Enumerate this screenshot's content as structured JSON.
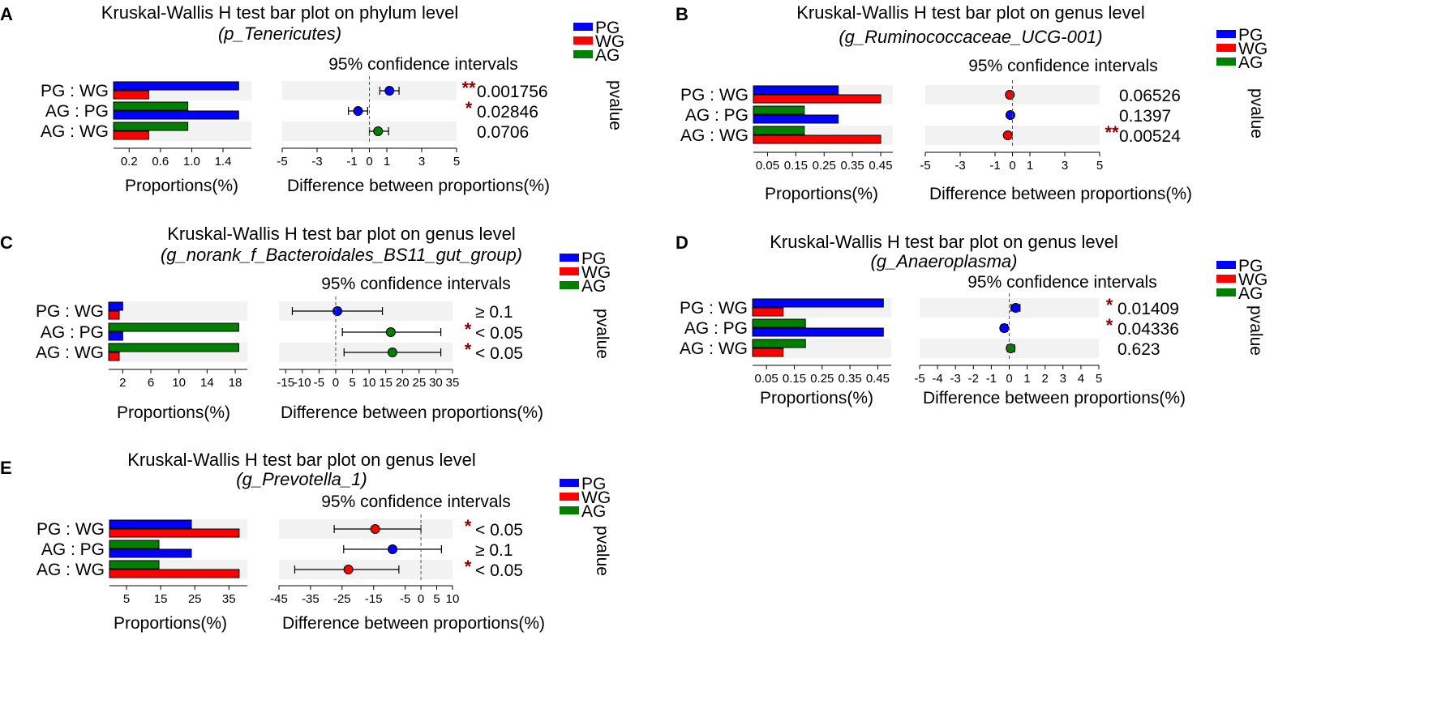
{
  "colors": {
    "PG": "#0000ff",
    "WG": "#ff0000",
    "AG": "#008000",
    "star": "#8b0000",
    "band": "#f2f2f2"
  },
  "legend": [
    "PG",
    "WG",
    "AG"
  ],
  "chart_data": [
    {
      "type": "bar",
      "panel": "A",
      "title": "Kruskal-Wallis H test bar plot on phylum level",
      "subtitle": "(p_Tenericutes)",
      "ci_title": "95% confidence intervals",
      "xlabel_left": "Proportions(%)",
      "xlabel_right": "Difference between proportions(%)",
      "pvalue_label": "pvalue",
      "rows": [
        {
          "label": "PG : WG",
          "bars": [
            {
              "group": "PG",
              "value": 1.6
            },
            {
              "group": "WG",
              "value": 0.45
            }
          ],
          "diff": 1.15,
          "lo": 0.6,
          "hi": 1.7,
          "dot": "PG",
          "pvalue": "0.001756",
          "stars": "**"
        },
        {
          "label": "AG : PG",
          "bars": [
            {
              "group": "AG",
              "value": 0.95
            },
            {
              "group": "PG",
              "value": 1.6
            }
          ],
          "diff": -0.65,
          "lo": -1.2,
          "hi": -0.1,
          "dot": "PG",
          "pvalue": "0.02846",
          "stars": "*"
        },
        {
          "label": "AG : WG",
          "bars": [
            {
              "group": "AG",
              "value": 0.95
            },
            {
              "group": "WG",
              "value": 0.45
            }
          ],
          "diff": 0.5,
          "lo": 0.0,
          "hi": 1.1,
          "dot": "AG",
          "pvalue": "0.0706",
          "stars": ""
        }
      ],
      "prop_max": 1.68,
      "prop_ticks": [
        "0.2",
        "0.6",
        "1.0",
        "1.4"
      ],
      "diff_range": [
        -5,
        5
      ],
      "diff_ticks": [
        "-5",
        "-3",
        "-1",
        "0",
        "1",
        "3",
        "5"
      ]
    },
    {
      "type": "bar",
      "panel": "B",
      "title": "Kruskal-Wallis H test bar plot on genus level",
      "subtitle": "(g_Ruminococcaceae_UCG-001)",
      "ci_title": "95% confidence intervals",
      "xlabel_left": "Proportions(%)",
      "xlabel_right": "Difference between proportions(%)",
      "pvalue_label": "pvalue",
      "rows": [
        {
          "label": "PG : WG",
          "bars": [
            {
              "group": "PG",
              "value": 0.3
            },
            {
              "group": "WG",
              "value": 0.45
            }
          ],
          "diff": -0.15,
          "lo": -0.3,
          "hi": 0.0,
          "dot": "WG",
          "pvalue": "0.06526",
          "stars": ""
        },
        {
          "label": "AG : PG",
          "bars": [
            {
              "group": "AG",
              "value": 0.18
            },
            {
              "group": "PG",
              "value": 0.3
            }
          ],
          "diff": -0.12,
          "lo": -0.25,
          "hi": 0.0,
          "dot": "PG",
          "pvalue": "0.1397",
          "stars": ""
        },
        {
          "label": "AG : WG",
          "bars": [
            {
              "group": "AG",
              "value": 0.18
            },
            {
              "group": "WG",
              "value": 0.45
            }
          ],
          "diff": -0.27,
          "lo": -0.4,
          "hi": -0.1,
          "dot": "WG",
          "pvalue": "0.00524",
          "stars": "**"
        }
      ],
      "prop_max": 0.47,
      "prop_ticks": [
        "0.05",
        "0.15",
        "0.25",
        "0.35",
        "0.45"
      ],
      "diff_range": [
        -5,
        5
      ],
      "diff_ticks": [
        "-5",
        "-3",
        "-1",
        "0",
        "1",
        "3",
        "5"
      ]
    },
    {
      "type": "bar",
      "panel": "C",
      "title": "Kruskal-Wallis H test bar plot on genus level",
      "subtitle": "(g_norank_f_Bacteroidales_BS11_gut_group)",
      "ci_title": "95% confidence intervals",
      "xlabel_left": "Proportions(%)",
      "xlabel_right": "Difference between proportions(%)",
      "pvalue_label": "pvalue",
      "rows": [
        {
          "label": "PG : WG",
          "bars": [
            {
              "group": "PG",
              "value": 2.0
            },
            {
              "group": "WG",
              "value": 1.5
            }
          ],
          "diff": 0.5,
          "lo": -13.0,
          "hi": 14.0,
          "dot": "PG",
          "pvalue": "≥ 0.1",
          "stars": ""
        },
        {
          "label": "AG : PG",
          "bars": [
            {
              "group": "AG",
              "value": 18.5
            },
            {
              "group": "PG",
              "value": 2.0
            }
          ],
          "diff": 16.5,
          "lo": 2.0,
          "hi": 31.5,
          "dot": "AG",
          "pvalue": "< 0.05",
          "stars": "*"
        },
        {
          "label": "AG : WG",
          "bars": [
            {
              "group": "AG",
              "value": 18.5
            },
            {
              "group": "WG",
              "value": 1.5
            }
          ],
          "diff": 17.0,
          "lo": 2.5,
          "hi": 31.5,
          "dot": "AG",
          "pvalue": "< 0.05",
          "stars": "*"
        }
      ],
      "prop_max": 18.8,
      "prop_ticks": [
        "2",
        "6",
        "10",
        "14",
        "18"
      ],
      "diff_range": [
        -17,
        35
      ],
      "diff_ticks": [
        "-15",
        "-10",
        "-5",
        "0",
        "5",
        "10",
        "15",
        "20",
        "25",
        "30",
        "35"
      ]
    },
    {
      "type": "bar",
      "panel": "D",
      "title": "Kruskal-Wallis H test bar plot on genus level",
      "subtitle": "(g_Anaeroplasma)",
      "ci_title": "95% confidence intervals",
      "xlabel_left": "Proportions(%)",
      "xlabel_right": "Difference between proportions(%)",
      "pvalue_label": "pvalue",
      "rows": [
        {
          "label": "PG : WG",
          "bars": [
            {
              "group": "PG",
              "value": 0.47
            },
            {
              "group": "WG",
              "value": 0.11
            }
          ],
          "diff": 0.36,
          "lo": 0.1,
          "hi": 0.6,
          "dot": "PG",
          "pvalue": "0.01409",
          "stars": "*"
        },
        {
          "label": "AG : PG",
          "bars": [
            {
              "group": "AG",
              "value": 0.19
            },
            {
              "group": "PG",
              "value": 0.47
            }
          ],
          "diff": -0.28,
          "lo": -0.45,
          "hi": -0.1,
          "dot": "PG",
          "pvalue": "0.04336",
          "stars": "*"
        },
        {
          "label": "AG : WG",
          "bars": [
            {
              "group": "AG",
              "value": 0.19
            },
            {
              "group": "WG",
              "value": 0.11
            }
          ],
          "diff": 0.08,
          "lo": -0.1,
          "hi": 0.3,
          "dot": "AG",
          "pvalue": "0.623",
          "stars": ""
        }
      ],
      "prop_max": 0.475,
      "prop_ticks": [
        "0.05",
        "0.15",
        "0.25",
        "0.35",
        "0.45"
      ],
      "diff_range": [
        -5,
        5
      ],
      "diff_ticks": [
        "-5",
        "-4",
        "-3",
        "-2",
        "-1",
        "0",
        "1",
        "2",
        "3",
        "4",
        "5"
      ]
    },
    {
      "type": "bar",
      "panel": "E",
      "title": "Kruskal-Wallis H test bar plot on genus level",
      "subtitle": "(g_Prevotella_1)",
      "ci_title": "95% confidence intervals",
      "xlabel_left": "Proportions(%)",
      "xlabel_right": "Difference between proportions(%)",
      "pvalue_label": "pvalue",
      "rows": [
        {
          "label": "PG : WG",
          "bars": [
            {
              "group": "PG",
              "value": 24.0
            },
            {
              "group": "WG",
              "value": 38.0
            }
          ],
          "diff": -14.5,
          "lo": -27.5,
          "hi": 0.0,
          "dot": "WG",
          "pvalue": "< 0.05",
          "stars": "*"
        },
        {
          "label": "AG : PG",
          "bars": [
            {
              "group": "AG",
              "value": 14.5
            },
            {
              "group": "PG",
              "value": 24.0
            }
          ],
          "diff": -9.0,
          "lo": -24.5,
          "hi": 6.5,
          "dot": "PG",
          "pvalue": "≥ 0.1",
          "stars": ""
        },
        {
          "label": "AG : WG",
          "bars": [
            {
              "group": "AG",
              "value": 14.5
            },
            {
              "group": "WG",
              "value": 38.0
            }
          ],
          "diff": -23.0,
          "lo": -40.0,
          "hi": -7.0,
          "dot": "WG",
          "pvalue": "< 0.05",
          "stars": "*"
        }
      ],
      "prop_max": 38.5,
      "prop_ticks": [
        "5",
        "15",
        "25",
        "35"
      ],
      "diff_range": [
        -45,
        10
      ],
      "diff_ticks": [
        "-45",
        "-35",
        "-25",
        "-15",
        "-5",
        "0",
        "5",
        "10"
      ]
    }
  ]
}
